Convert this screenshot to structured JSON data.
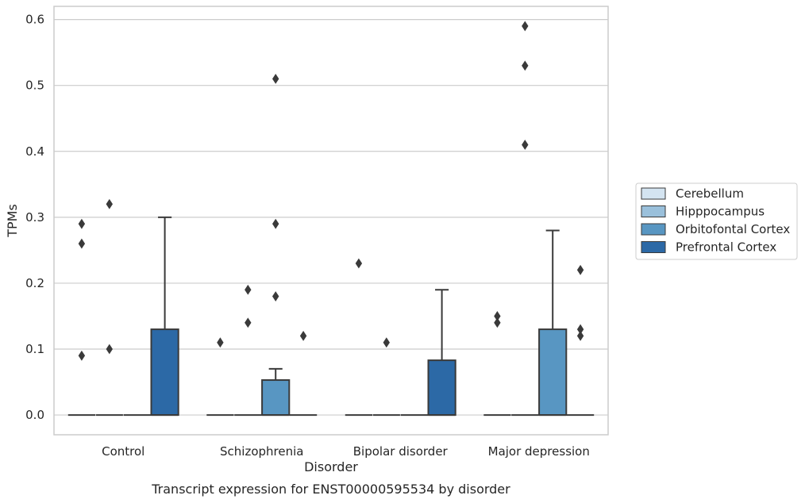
{
  "caption": "Transcript expression for ENST00000595534 by disorder",
  "chart_data": {
    "type": "box",
    "xlabel": "Disorder",
    "ylabel": "TPMs",
    "ylim": [
      -0.03,
      0.62
    ],
    "yticks": [
      0.0,
      0.1,
      0.2,
      0.3,
      0.4,
      0.5,
      0.6
    ],
    "ytick_labels": [
      "0.0",
      "0.1",
      "0.2",
      "0.3",
      "0.4",
      "0.5",
      "0.6"
    ],
    "grid": true,
    "legend_position": "right",
    "categories": [
      "Control",
      "Schizophrenia",
      "Bipolar disorder",
      "Major depression"
    ],
    "series": [
      {
        "name": "Cerebellum",
        "color": "#d4e4f1",
        "boxes": [
          {
            "category": "Control",
            "whislo": 0,
            "q1": 0,
            "med": 0,
            "q3": 0,
            "whishi": 0,
            "fliers": [
              0.29,
              0.26,
              0.09
            ]
          },
          {
            "category": "Schizophrenia",
            "whislo": 0,
            "q1": 0,
            "med": 0,
            "q3": 0,
            "whishi": 0,
            "fliers": [
              0.11
            ]
          },
          {
            "category": "Bipolar disorder",
            "whislo": 0,
            "q1": 0,
            "med": 0,
            "q3": 0,
            "whishi": 0,
            "fliers": [
              0.23
            ]
          },
          {
            "category": "Major depression",
            "whislo": 0,
            "q1": 0,
            "med": 0,
            "q3": 0,
            "whishi": 0,
            "fliers": [
              0.15,
              0.14
            ]
          }
        ]
      },
      {
        "name": "Hipppocampus",
        "color": "#9ac0db",
        "boxes": [
          {
            "category": "Control",
            "whislo": 0,
            "q1": 0,
            "med": 0,
            "q3": 0,
            "whishi": 0,
            "fliers": [
              0.32,
              0.1
            ]
          },
          {
            "category": "Schizophrenia",
            "whislo": 0,
            "q1": 0,
            "med": 0,
            "q3": 0,
            "whishi": 0,
            "fliers": [
              0.19,
              0.14
            ]
          },
          {
            "category": "Bipolar disorder",
            "whislo": 0,
            "q1": 0,
            "med": 0,
            "q3": 0,
            "whishi": 0,
            "fliers": [
              0.11
            ]
          },
          {
            "category": "Major depression",
            "whislo": 0,
            "q1": 0,
            "med": 0,
            "q3": 0,
            "whishi": 0,
            "fliers": [
              0.59,
              0.53,
              0.41
            ]
          }
        ]
      },
      {
        "name": "Orbitofontal Cortex",
        "color": "#5896c2",
        "boxes": [
          {
            "category": "Control",
            "whislo": 0,
            "q1": 0,
            "med": 0,
            "q3": 0,
            "whishi": 0,
            "fliers": []
          },
          {
            "category": "Schizophrenia",
            "whislo": 0,
            "q1": 0,
            "med": 0,
            "q3": 0.053,
            "whishi": 0.07,
            "fliers": [
              0.51,
              0.29,
              0.18
            ]
          },
          {
            "category": "Bipolar disorder",
            "whislo": 0,
            "q1": 0,
            "med": 0,
            "q3": 0,
            "whishi": 0,
            "fliers": []
          },
          {
            "category": "Major depression",
            "whislo": 0,
            "q1": 0,
            "med": 0,
            "q3": 0.13,
            "whishi": 0.28,
            "fliers": []
          }
        ]
      },
      {
        "name": "Prefrontal Cortex",
        "color": "#2c69a6",
        "boxes": [
          {
            "category": "Control",
            "whislo": 0,
            "q1": 0,
            "med": 0,
            "q3": 0.13,
            "whishi": 0.3,
            "fliers": []
          },
          {
            "category": "Schizophrenia",
            "whislo": 0,
            "q1": 0,
            "med": 0,
            "q3": 0,
            "whishi": 0,
            "fliers": [
              0.12
            ]
          },
          {
            "category": "Bipolar disorder",
            "whislo": 0,
            "q1": 0,
            "med": 0,
            "q3": 0.083,
            "whishi": 0.19,
            "fliers": []
          },
          {
            "category": "Major depression",
            "whislo": 0,
            "q1": 0,
            "med": 0,
            "q3": 0,
            "whishi": 0,
            "fliers": [
              0.22,
              0.13,
              0.12
            ]
          }
        ]
      }
    ]
  }
}
